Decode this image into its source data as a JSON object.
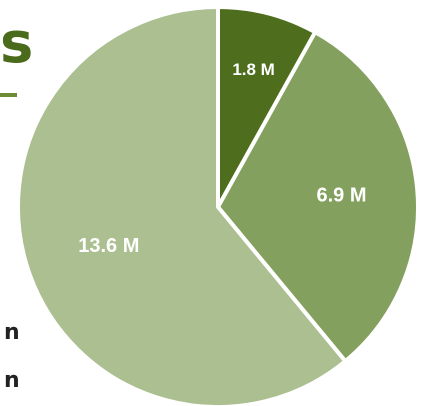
{
  "heading_fragment": "s",
  "side_fragments": [
    "n",
    "n"
  ],
  "colors": {
    "heading": "#4b6b1c",
    "background": "#ffffff"
  },
  "chart_data": {
    "type": "pie",
    "unit": "M",
    "slices": [
      {
        "label": "1.8 M",
        "value": 1.8,
        "color": "#4e6d1d"
      },
      {
        "label": "6.9 M",
        "value": 6.9,
        "color": "#84a05e"
      },
      {
        "label": "13.6 M",
        "value": 13.6,
        "color": "#abbf90"
      }
    ]
  }
}
